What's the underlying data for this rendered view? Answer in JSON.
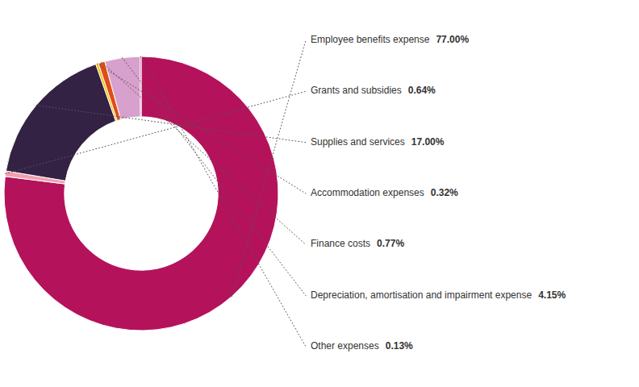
{
  "chart_data": {
    "type": "donut",
    "categories": [
      "Employee benefits expense",
      "Grants and subsidies",
      "Supplies and services",
      "Accommodation expenses",
      "Finance costs",
      "Depreciation, amortisation and impairment expense",
      "Other expenses"
    ],
    "values": [
      77.0,
      0.64,
      17.0,
      0.32,
      0.77,
      4.15,
      0.13
    ],
    "value_labels": [
      "77.00%",
      "0.64%",
      "17.00%",
      "0.32%",
      "0.77%",
      "4.15%",
      "0.13%"
    ],
    "colors": [
      "#b5125c",
      "#f2a0b0",
      "#332244",
      "#f5c200",
      "#e04d18",
      "#d8a0cc",
      "#881050"
    ],
    "data_labels": true
  }
}
